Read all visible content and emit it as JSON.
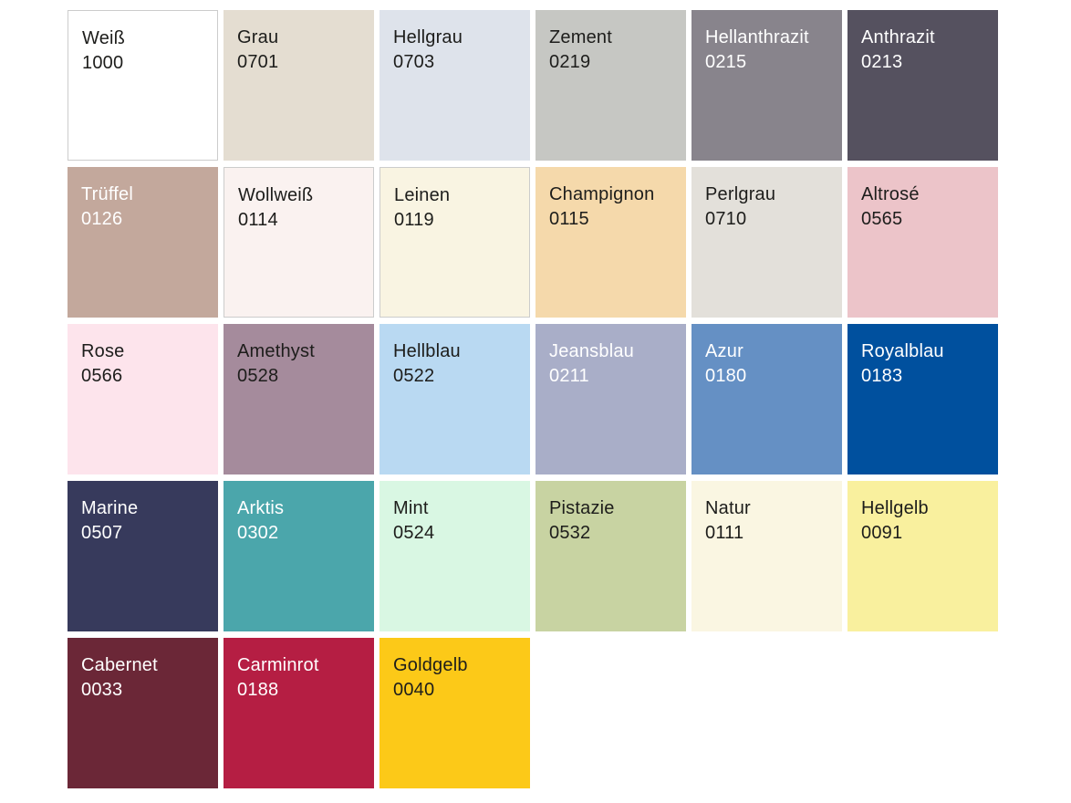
{
  "page": {
    "background": "#ffffff"
  },
  "palette": {
    "columns": 6,
    "border_color": "#cccccc",
    "dark_text_color": "#1d1d1b",
    "light_text_color": "#ffffff",
    "swatches": [
      {
        "name": "Weiß",
        "code": "1000",
        "color": "#ffffff",
        "text_color": "#1d1d1b",
        "bordered": true
      },
      {
        "name": "Grau",
        "code": "0701",
        "color": "#e4ddd1",
        "text_color": "#1d1d1b",
        "bordered": false
      },
      {
        "name": "Hellgrau",
        "code": "0703",
        "color": "#dee3eb",
        "text_color": "#1d1d1b",
        "bordered": false
      },
      {
        "name": "Zement",
        "code": "0219",
        "color": "#c6c7c3",
        "text_color": "#1d1d1b",
        "bordered": false
      },
      {
        "name": "Hellanthrazit",
        "code": "0215",
        "color": "#88848c",
        "text_color": "#ffffff",
        "bordered": false
      },
      {
        "name": "Anthrazit",
        "code": "0213",
        "color": "#55515f",
        "text_color": "#ffffff",
        "bordered": false
      },
      {
        "name": "Trüffel",
        "code": "0126",
        "color": "#c3a89c",
        "text_color": "#ffffff",
        "bordered": false
      },
      {
        "name": "Wollweiß",
        "code": "0114",
        "color": "#faf2f0",
        "text_color": "#1d1d1b",
        "bordered": true
      },
      {
        "name": "Leinen",
        "code": "0119",
        "color": "#f9f4e2",
        "text_color": "#1d1d1b",
        "bordered": true
      },
      {
        "name": "Champignon",
        "code": "0115",
        "color": "#f5d9ab",
        "text_color": "#1d1d1b",
        "bordered": false
      },
      {
        "name": "Perlgrau",
        "code": "0710",
        "color": "#e3e0da",
        "text_color": "#1d1d1b",
        "bordered": false
      },
      {
        "name": "Altrosé",
        "code": "0565",
        "color": "#ecc4c9",
        "text_color": "#1d1d1b",
        "bordered": false
      },
      {
        "name": "Rose",
        "code": "0566",
        "color": "#fde4ec",
        "text_color": "#1d1d1b",
        "bordered": false
      },
      {
        "name": "Amethyst",
        "code": "0528",
        "color": "#a58b9c",
        "text_color": "#1d1d1b",
        "bordered": false
      },
      {
        "name": "Hellblau",
        "code": "0522",
        "color": "#b9d9f2",
        "text_color": "#1d1d1b",
        "bordered": false
      },
      {
        "name": "Jeansblau",
        "code": "0211",
        "color": "#a9aec8",
        "text_color": "#ffffff",
        "bordered": false
      },
      {
        "name": "Azur",
        "code": "0180",
        "color": "#6590c4",
        "text_color": "#ffffff",
        "bordered": false
      },
      {
        "name": "Royalblau",
        "code": "0183",
        "color": "#00509e",
        "text_color": "#ffffff",
        "bordered": false
      },
      {
        "name": "Marine",
        "code": "0507",
        "color": "#373a5c",
        "text_color": "#ffffff",
        "bordered": false
      },
      {
        "name": "Arktis",
        "code": "0302",
        "color": "#4ba6ab",
        "text_color": "#ffffff",
        "bordered": false
      },
      {
        "name": "Mint",
        "code": "0524",
        "color": "#d9f7e3",
        "text_color": "#1d1d1b",
        "bordered": false
      },
      {
        "name": "Pistazie",
        "code": "0532",
        "color": "#c8d3a2",
        "text_color": "#1d1d1b",
        "bordered": false
      },
      {
        "name": "Natur",
        "code": "0111",
        "color": "#faf6e2",
        "text_color": "#1d1d1b",
        "bordered": false
      },
      {
        "name": "Hellgelb",
        "code": "0091",
        "color": "#f9f09e",
        "text_color": "#1d1d1b",
        "bordered": false
      },
      {
        "name": "Cabernet",
        "code": "0033",
        "color": "#6b2737",
        "text_color": "#ffffff",
        "bordered": false
      },
      {
        "name": "Carminrot",
        "code": "0188",
        "color": "#b51e43",
        "text_color": "#ffffff",
        "bordered": false
      },
      {
        "name": "Goldgelb",
        "code": "0040",
        "color": "#fcc918",
        "text_color": "#1d1d1b",
        "bordered": false
      }
    ]
  }
}
